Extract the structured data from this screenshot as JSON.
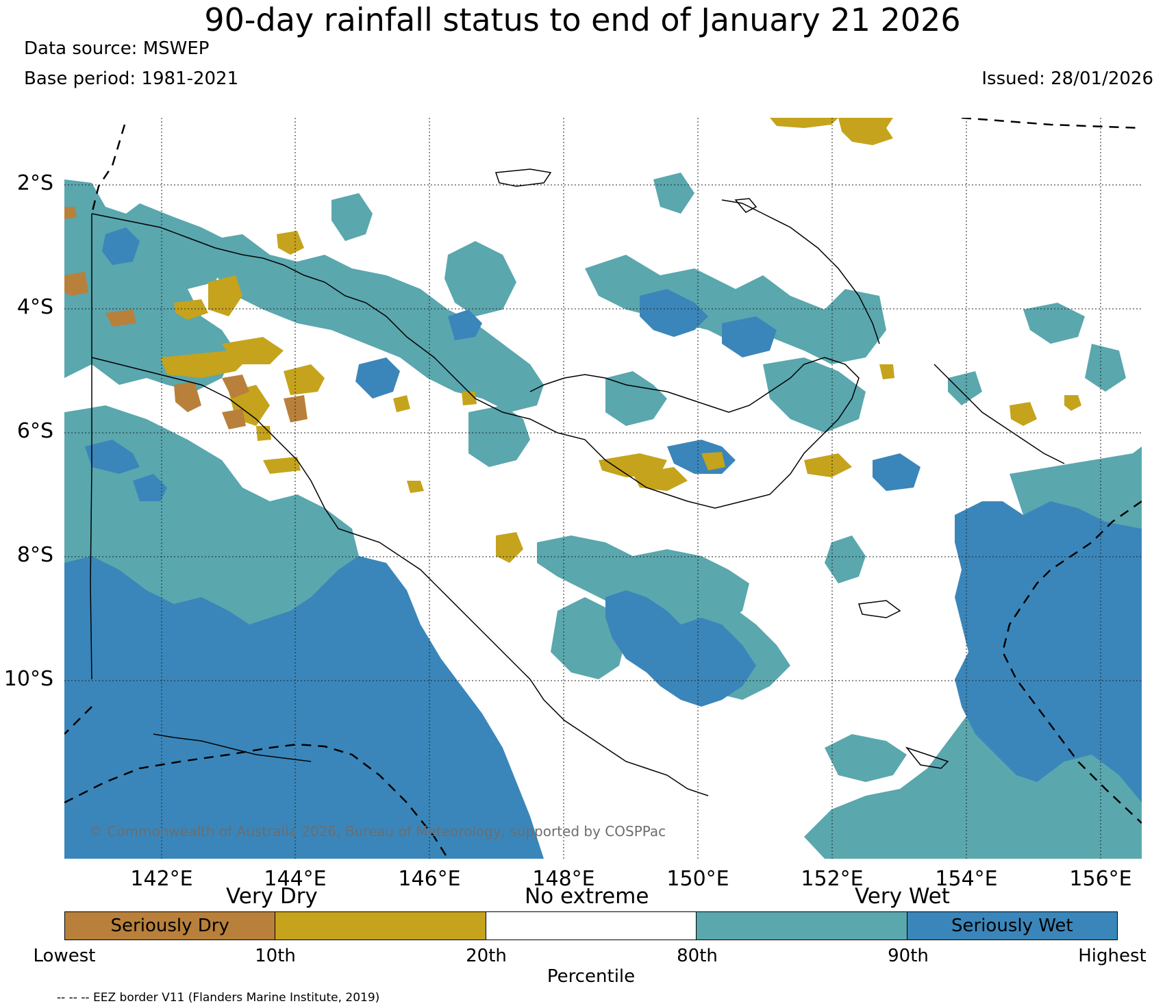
{
  "title": "90-day rainfall status to end of January 21 2026",
  "data_source": "Data source: MSWEP",
  "base_period": "Base period: 1981-2021",
  "issued": "Issued: 28/01/2026",
  "map": {
    "lat_labels": [
      "2°S",
      "4°S",
      "6°S",
      "8°S",
      "10°S"
    ],
    "lon_labels": [
      "142°E",
      "144°E",
      "146°E",
      "148°E",
      "150°E",
      "152°E",
      "154°E",
      "156°E"
    ],
    "copyright": "© Commonwealth of Australia 2026, Bureau of Meteorology, supported by COSPPac"
  },
  "legend": {
    "categories": [
      "Very Dry",
      "No extreme",
      "Very Wet"
    ],
    "segments": [
      {
        "label": "Seriously Dry",
        "color": "#b8803a"
      },
      {
        "label": "",
        "color": "#c5a31c"
      },
      {
        "label": "",
        "color": "#ffffff"
      },
      {
        "label": "",
        "color": "#5aa7ae"
      },
      {
        "label": "Seriously Wet",
        "color": "#3a86ba"
      }
    ],
    "ticks": [
      "Lowest",
      "10th",
      "20th",
      "80th",
      "90th",
      "Highest"
    ],
    "axis_label": "Percentile"
  },
  "footnote": "-- -- -- EEZ border V11 (Flanders Marine Institute, 2019)",
  "colors": {
    "seriously_dry": "#b8803a",
    "very_dry": "#c5a31c",
    "no_extreme": "#ffffff",
    "very_wet": "#5aa7ae",
    "seriously_wet": "#3a86ba"
  }
}
